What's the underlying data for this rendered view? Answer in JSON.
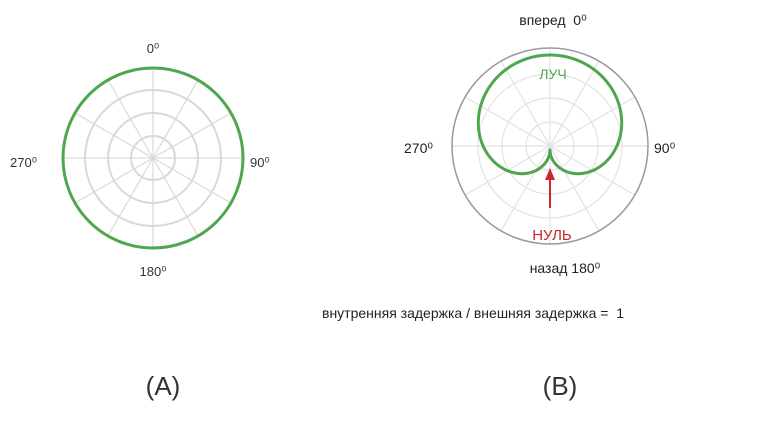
{
  "panels": [
    {
      "id": "A",
      "caption": "(A)",
      "labels": {
        "top": "0⁰",
        "right": "90⁰",
        "bottom": "180⁰",
        "left": "270⁰"
      }
    },
    {
      "id": "B",
      "caption": "(B)",
      "labels": {
        "top": "вперед  0⁰",
        "right": "90⁰",
        "bottom": "назад 180⁰",
        "left": "270⁰",
        "beam": "ЛУЧ",
        "null": "НУЛЬ",
        "ratio": "внутренняя задержка / внешняя задержка =  1"
      }
    }
  ],
  "colors": {
    "pattern": "#4ea64e",
    "null_arrow": "#c8272b",
    "grid": "#d9d9d9",
    "outline": "#9a9a9a"
  }
}
